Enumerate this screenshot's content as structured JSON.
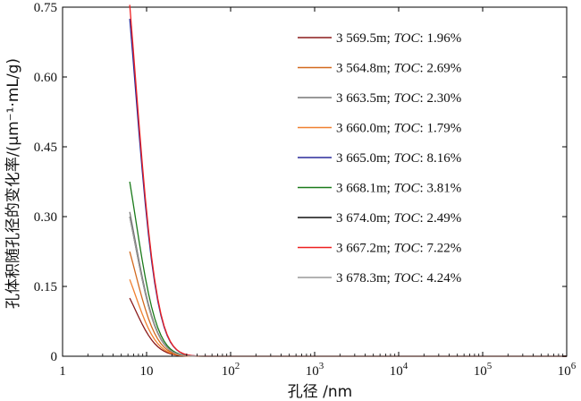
{
  "chart_data": {
    "type": "line",
    "xscale": "log",
    "xlim": [
      1,
      1000000
    ],
    "ylim": [
      0,
      0.75
    ],
    "xlabel": "孔径 /nm",
    "ylabel": "孔体积随孔径的变化率/(μm⁻¹·mL/g)",
    "yticks": [
      "0",
      "0.15",
      "0.30",
      "0.45",
      "0.60",
      "0.75"
    ],
    "xticks": [
      {
        "base": "1",
        "exp": ""
      },
      {
        "base": "10",
        "exp": ""
      },
      {
        "base": "10",
        "exp": "2"
      },
      {
        "base": "10",
        "exp": "3"
      },
      {
        "base": "10",
        "exp": "4"
      },
      {
        "base": "10",
        "exp": "5"
      },
      {
        "base": "10",
        "exp": "6"
      }
    ],
    "legend_position": "top-right",
    "series": [
      {
        "name": "3 569.5m",
        "toc": "1.96%",
        "color": "#8b1a1a",
        "start": 0.125
      },
      {
        "name": "3 564.8m",
        "toc": "2.69%",
        "color": "#d2691e",
        "start": 0.225
      },
      {
        "name": "3 663.5m",
        "toc": "2.30%",
        "color": "#777777",
        "start": 0.31
      },
      {
        "name": "3 660.0m",
        "toc": "1.79%",
        "color": "#f08030",
        "start": 0.165
      },
      {
        "name": "3 665.0m",
        "toc": "8.16%",
        "color": "#2a2a9a",
        "start": 0.725
      },
      {
        "name": "3 668.1m",
        "toc": "3.81%",
        "color": "#1a7a1a",
        "start": 0.375
      },
      {
        "name": "3 674.0m",
        "toc": "2.49%",
        "color": "#111111",
        "start": 0.3
      },
      {
        "name": "3 667.2m",
        "toc": "7.22%",
        "color": "#ee2020",
        "start": 0.755
      },
      {
        "name": "3 678.3m",
        "toc": "4.24%",
        "color": "#999999",
        "start": 0.3
      }
    ],
    "legend_sep": "; ",
    "legend_toc_label": "TOC",
    "legend_colon": ": "
  }
}
